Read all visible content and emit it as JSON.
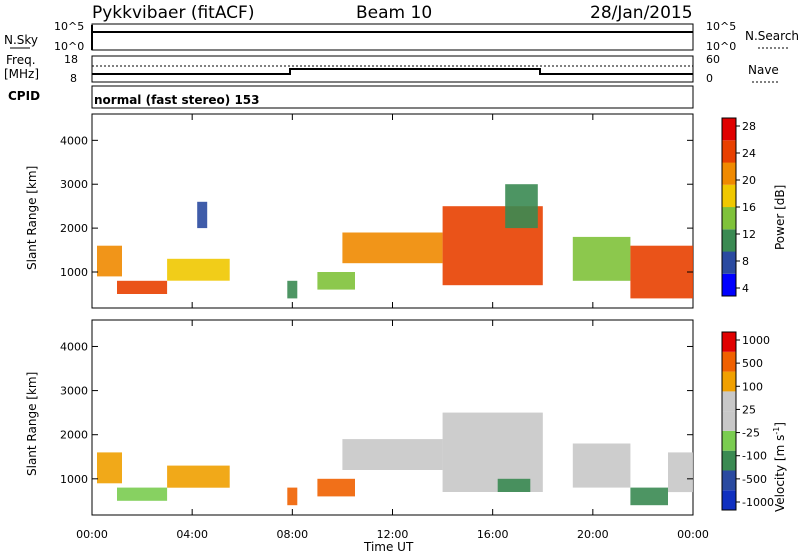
{
  "header": {
    "station": "Pykkvibaer (fitACF)",
    "beam": "Beam 10",
    "date": "28/Jan/2015"
  },
  "top_panel": {
    "left_label": "N.Sky",
    "right_label": "N.Search",
    "left_ticks": [
      "10^5",
      "10^0"
    ],
    "right_ticks": [
      "10^5",
      "10^0"
    ]
  },
  "freq_panel": {
    "left_label_line1": "Freq.",
    "left_label_line2": "[MHz]",
    "right_label": "Nave",
    "left_ticks": [
      "18",
      "8"
    ],
    "right_ticks": [
      "60",
      "0"
    ]
  },
  "cpid_panel": {
    "label": "CPID",
    "text": "normal (fast stereo) 153"
  },
  "colors": {
    "power_scale": [
      "#0000ff",
      "#2a4aa0",
      "#3a8a52",
      "#7fc23a",
      "#f0c800",
      "#f08a00",
      "#e84000",
      "#e00000"
    ],
    "velocity_scale": [
      "#e00000",
      "#f06000",
      "#f0a000",
      "#c8c8c8",
      "#c8c8c8",
      "#7acc50",
      "#3a8a52",
      "#2a4aa0",
      "#1030c0"
    ]
  },
  "chart_data": [
    {
      "type": "heatmap",
      "name": "power",
      "xlabel": "",
      "ylabel": "Slant Range [km]",
      "xlim": [
        0,
        24
      ],
      "ylim": [
        180,
        4600
      ],
      "y_ticks": [
        1000,
        2000,
        3000,
        4000
      ],
      "colorbar": {
        "label": "Power [dB]",
        "ticks": [
          "28",
          "24",
          "20",
          "16",
          "12",
          "8",
          "4"
        ]
      },
      "regions": [
        {
          "t0": 0.2,
          "t1": 1.2,
          "r0": 900,
          "r1": 1600,
          "level": 5
        },
        {
          "t0": 1.0,
          "t1": 3.0,
          "r0": 500,
          "r1": 800,
          "level": 6
        },
        {
          "t0": 3.0,
          "t1": 5.5,
          "r0": 800,
          "r1": 1300,
          "level": 4
        },
        {
          "t0": 4.2,
          "t1": 4.6,
          "r0": 2000,
          "r1": 2600,
          "level": 1
        },
        {
          "t0": 7.8,
          "t1": 8.2,
          "r0": 400,
          "r1": 800,
          "level": 2
        },
        {
          "t0": 9.0,
          "t1": 10.5,
          "r0": 600,
          "r1": 1000,
          "level": 3
        },
        {
          "t0": 10.0,
          "t1": 14.0,
          "r0": 1200,
          "r1": 1900,
          "level": 5
        },
        {
          "t0": 14.0,
          "t1": 18.0,
          "r0": 700,
          "r1": 2500,
          "level": 6
        },
        {
          "t0": 16.5,
          "t1": 17.8,
          "r0": 2000,
          "r1": 3000,
          "level": 2
        },
        {
          "t0": 19.2,
          "t1": 21.5,
          "r0": 800,
          "r1": 1800,
          "level": 3
        },
        {
          "t0": 21.5,
          "t1": 24.0,
          "r0": 400,
          "r1": 1600,
          "level": 6
        }
      ]
    },
    {
      "type": "heatmap",
      "name": "velocity",
      "xlabel": "Time UT",
      "ylabel": "Slant Range [km]",
      "xlim": [
        0,
        24
      ],
      "ylim": [
        180,
        4600
      ],
      "x_ticks": [
        "00:00",
        "04:00",
        "08:00",
        "12:00",
        "16:00",
        "20:00",
        "00:00"
      ],
      "y_ticks": [
        1000,
        2000,
        3000,
        4000
      ],
      "colorbar": {
        "label": "Velocity [m s",
        "label_sup": "-1",
        "label_end": "]",
        "ticks": [
          "1000",
          "500",
          "100",
          "25",
          "-25",
          "-100",
          "-500",
          "-1000"
        ]
      },
      "regions": [
        {
          "t0": 0.2,
          "t1": 1.2,
          "r0": 900,
          "r1": 1600,
          "level": 2
        },
        {
          "t0": 1.0,
          "t1": 3.0,
          "r0": 500,
          "r1": 800,
          "level": 5
        },
        {
          "t0": 3.0,
          "t1": 5.5,
          "r0": 800,
          "r1": 1300,
          "level": 2
        },
        {
          "t0": 7.8,
          "t1": 8.2,
          "r0": 400,
          "r1": 800,
          "level": 1
        },
        {
          "t0": 9.0,
          "t1": 10.5,
          "r0": 600,
          "r1": 1000,
          "level": 1
        },
        {
          "t0": 10.0,
          "t1": 14.0,
          "r0": 1200,
          "r1": 1900,
          "level": 3
        },
        {
          "t0": 14.0,
          "t1": 18.0,
          "r0": 700,
          "r1": 2500,
          "level": 3
        },
        {
          "t0": 16.2,
          "t1": 17.5,
          "r0": 700,
          "r1": 1000,
          "level": 6
        },
        {
          "t0": 19.2,
          "t1": 21.5,
          "r0": 800,
          "r1": 1800,
          "level": 3
        },
        {
          "t0": 21.5,
          "t1": 23.0,
          "r0": 400,
          "r1": 800,
          "level": 6
        },
        {
          "t0": 23.0,
          "t1": 24.0,
          "r0": 700,
          "r1": 1600,
          "level": 3
        }
      ]
    }
  ]
}
